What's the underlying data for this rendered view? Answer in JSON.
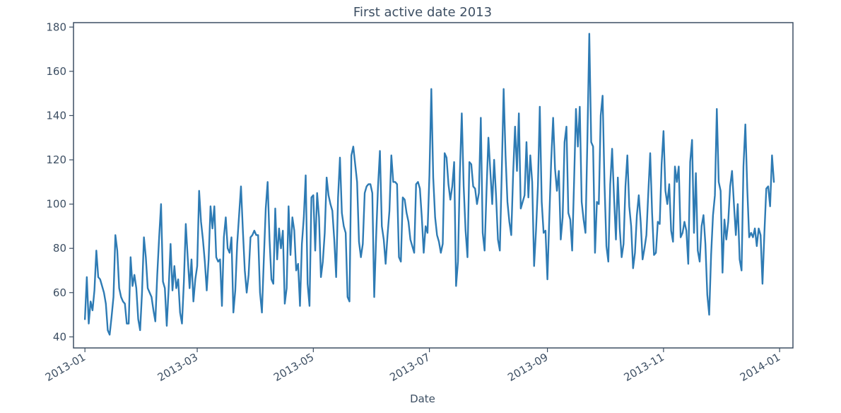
{
  "chart_data": {
    "type": "line",
    "title": "First active date 2013",
    "xlabel": "Date",
    "ylabel": "",
    "ylim": [
      35,
      182
    ],
    "xlim": [
      "2012-12-26",
      "2014-01-08"
    ],
    "grid": false,
    "legend": "none",
    "line_color": "#2e7bb4",
    "yticks": [
      40,
      60,
      80,
      100,
      120,
      140,
      160,
      180
    ],
    "xticks": [
      "2013-01",
      "2013-03",
      "2013-05",
      "2013-07",
      "2013-09",
      "2013-11",
      "2014-01"
    ],
    "xtick_dates": [
      "2013-01-01",
      "2013-03-01",
      "2013-05-01",
      "2013-07-01",
      "2013-09-01",
      "2013-11-01",
      "2014-01-01"
    ],
    "series": [
      {
        "start_date": "2013-01-01",
        "values": [
          48,
          67,
          46,
          56,
          52,
          61,
          79,
          67,
          66,
          63,
          60,
          55,
          43,
          41,
          49,
          58,
          86,
          79,
          62,
          58,
          56,
          55,
          46,
          46,
          76,
          63,
          68,
          62,
          48,
          43,
          60,
          85,
          76,
          62,
          60,
          58,
          52,
          47,
          68,
          85,
          100,
          65,
          62,
          45,
          62,
          82,
          61,
          72,
          62,
          66,
          51,
          46,
          65,
          91,
          76,
          62,
          75,
          56,
          66,
          72,
          106,
          92,
          84,
          74,
          61,
          75,
          99,
          89,
          99,
          76,
          74,
          75,
          54,
          85,
          94,
          80,
          78,
          85,
          51,
          61,
          82,
          95,
          108,
          88,
          70,
          60,
          68,
          85,
          86,
          88,
          86,
          86,
          60,
          51,
          75,
          98,
          110,
          84,
          66,
          64,
          98,
          75,
          89,
          80,
          88,
          55,
          62,
          99,
          77,
          94,
          88,
          70,
          73,
          54,
          82,
          94,
          113,
          64,
          54,
          103,
          104,
          79,
          105,
          94,
          67,
          74,
          87,
          112,
          104,
          100,
          97,
          84,
          67,
          103,
          121,
          96,
          90,
          87,
          58,
          56,
          122,
          126,
          118,
          110,
          83,
          76,
          82,
          105,
          108,
          109,
          109,
          105,
          58,
          85,
          108,
          124,
          90,
          84,
          73,
          86,
          97,
          122,
          110,
          110,
          109,
          76,
          74,
          103,
          102,
          96,
          92,
          84,
          81,
          78,
          109,
          110,
          107,
          94,
          78,
          90,
          87,
          113,
          152,
          112,
          94,
          86,
          83,
          78,
          82,
          123,
          121,
          109,
          102,
          108,
          119,
          63,
          74,
          114,
          141,
          108,
          88,
          76,
          119,
          118,
          108,
          107,
          100,
          105,
          139,
          87,
          79,
          106,
          130,
          115,
          100,
          120,
          104,
          84,
          79,
          114,
          152,
          122,
          101,
          92,
          86,
          114,
          135,
          115,
          141,
          98,
          101,
          104,
          128,
          103,
          122,
          110,
          72,
          88,
          108,
          144,
          101,
          87,
          88,
          66,
          94,
          120,
          139,
          116,
          106,
          115,
          84,
          94,
          128,
          135,
          96,
          93,
          79,
          110,
          143,
          126,
          144,
          101,
          93,
          87,
          129,
          177,
          128,
          126,
          78,
          101,
          100,
          140,
          149,
          109,
          81,
          74,
          109,
          125,
          103,
          84,
          112,
          89,
          76,
          82,
          108,
          122,
          99,
          90,
          71,
          78,
          95,
          104,
          92,
          75,
          80,
          86,
          105,
          123,
          96,
          77,
          78,
          92,
          91,
          118,
          133,
          106,
          100,
          109,
          88,
          83,
          117,
          110,
          117,
          85,
          87,
          92,
          88,
          73,
          119,
          129,
          87,
          114,
          79,
          74,
          90,
          95,
          82,
          59,
          50,
          77,
          95,
          104,
          143,
          110,
          106,
          69,
          93,
          84,
          92,
          108,
          115,
          100,
          86,
          100,
          75,
          70,
          117,
          136,
          107,
          85,
          87,
          85,
          89,
          81,
          89,
          86,
          64,
          87,
          107,
          108,
          99,
          122,
          110
        ]
      }
    ]
  }
}
